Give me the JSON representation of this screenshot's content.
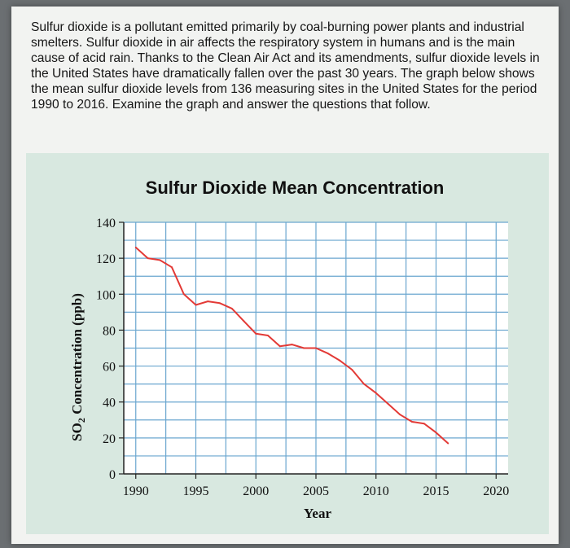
{
  "intro_text": "Sulfur dioxide is a pollutant emitted primarily by coal-burning power plants and industrial smelters. Sulfur dioxide in air affects the respiratory system in humans and is the main cause of acid rain. Thanks to the Clean Air Act and its amendments, sulfur dioxide levels in the United States have dramatically fallen over the past 30 years. The graph below shows the mean sulfur dioxide levels from 136 measuring sites in the United States for the period 1990 to 2016. Examine the graph and answer the questions that follow.",
  "colors": {
    "line": "#e33a36",
    "grid": "#6aa6cf",
    "plot_bg": "#ffffff",
    "panel_bg": "#d8e8e0"
  },
  "chart_data": {
    "type": "line",
    "title": "Sulfur Dioxide Mean Concentration",
    "xlabel": "Year",
    "ylabel_main": "SO",
    "ylabel_sub": "2",
    "ylabel_rest": " Concentration (ppb)",
    "xlim": [
      1989,
      2021
    ],
    "ylim": [
      0,
      140
    ],
    "x_ticks": [
      1990,
      1995,
      2000,
      2005,
      2010,
      2015,
      2020
    ],
    "y_ticks": [
      0,
      20,
      40,
      60,
      80,
      100,
      120,
      140
    ],
    "grid": true,
    "series": [
      {
        "name": "SO2 mean concentration",
        "x": [
          1990,
          1991,
          1992,
          1993,
          1994,
          1995,
          1996,
          1997,
          1998,
          1999,
          2000,
          2001,
          2002,
          2003,
          2004,
          2005,
          2006,
          2007,
          2008,
          2009,
          2010,
          2011,
          2012,
          2013,
          2014,
          2015,
          2016
        ],
        "values": [
          126,
          120,
          119,
          115,
          100,
          94,
          96,
          95,
          92,
          85,
          78,
          77,
          71,
          72,
          70,
          70,
          67,
          63,
          58,
          50,
          45,
          39,
          33,
          29,
          28,
          23,
          17
        ]
      }
    ]
  }
}
